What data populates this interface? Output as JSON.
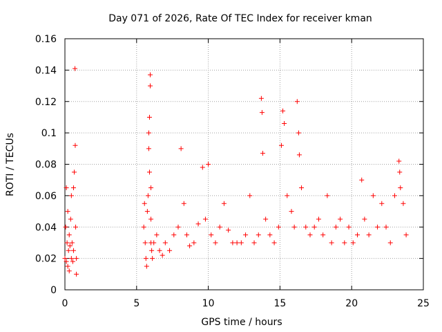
{
  "chart_data": {
    "type": "scatter",
    "title": "Day 071 of 2026, Rate Of TEC Index for receiver kman",
    "xlabel": "GPS time / hours",
    "ylabel": "ROTI / TECUs",
    "xlim": [
      0,
      25
    ],
    "ylim": [
      0,
      0.16
    ],
    "x_ticks": [
      0,
      5,
      10,
      15,
      20,
      25
    ],
    "x_tick_labels": [
      "0",
      "5",
      "10",
      "15",
      "20",
      "25"
    ],
    "y_ticks": [
      0,
      0.02,
      0.04,
      0.06,
      0.08,
      0.1,
      0.12,
      0.14,
      0.16
    ],
    "y_tick_labels": [
      "0",
      "0.02",
      "0.04",
      "0.06",
      "0.08",
      "0.1",
      "0.12",
      "0.14",
      "0.16"
    ],
    "grid": true,
    "legend": "none",
    "marker": "+",
    "color": "#ff0000",
    "series": [
      {
        "x": [
          0.0,
          0.05,
          0.1,
          0.1,
          0.15,
          0.2,
          0.2,
          0.25,
          0.3,
          0.3,
          0.35,
          0.4,
          0.45,
          0.45,
          0.5,
          0.55,
          0.6,
          0.6,
          0.65,
          0.7,
          0.72,
          0.75,
          0.8,
          0.8,
          5.5,
          5.55,
          5.6,
          5.65,
          5.7,
          5.75,
          5.8,
          5.85,
          5.85,
          5.9,
          5.9,
          5.95,
          5.95,
          6.0,
          6.0,
          6.0,
          6.05,
          6.1,
          6.2,
          6.4,
          6.6,
          6.8,
          7.0,
          7.3,
          7.6,
          7.9,
          8.1,
          8.3,
          8.5,
          8.7,
          9.0,
          9.3,
          9.6,
          9.8,
          10.0,
          10.2,
          10.5,
          10.8,
          11.1,
          11.4,
          11.7,
          12.0,
          12.3,
          12.6,
          12.9,
          13.2,
          13.5,
          13.7,
          13.75,
          13.8,
          14.0,
          14.3,
          14.6,
          14.9,
          15.1,
          15.2,
          15.3,
          15.5,
          15.8,
          16.0,
          16.2,
          16.3,
          16.35,
          16.5,
          16.8,
          17.1,
          17.4,
          17.7,
          18.0,
          18.3,
          18.6,
          18.9,
          19.2,
          19.5,
          19.8,
          20.1,
          20.4,
          20.7,
          20.9,
          21.2,
          21.5,
          21.8,
          22.1,
          22.4,
          22.7,
          23.0,
          23.3,
          23.35,
          23.4,
          23.6,
          23.8
        ],
        "y": [
          0.02,
          0.04,
          0.065,
          0.018,
          0.03,
          0.05,
          0.015,
          0.025,
          0.035,
          0.012,
          0.028,
          0.045,
          0.02,
          0.06,
          0.03,
          0.018,
          0.065,
          0.025,
          0.075,
          0.141,
          0.092,
          0.04,
          0.02,
          0.01,
          0.04,
          0.055,
          0.03,
          0.02,
          0.015,
          0.05,
          0.06,
          0.09,
          0.1,
          0.11,
          0.075,
          0.13,
          0.137,
          0.065,
          0.045,
          0.03,
          0.025,
          0.02,
          0.03,
          0.035,
          0.025,
          0.022,
          0.03,
          0.025,
          0.035,
          0.04,
          0.09,
          0.055,
          0.035,
          0.028,
          0.03,
          0.042,
          0.078,
          0.045,
          0.08,
          0.035,
          0.03,
          0.04,
          0.055,
          0.038,
          0.03,
          0.03,
          0.03,
          0.035,
          0.06,
          0.03,
          0.035,
          0.122,
          0.113,
          0.087,
          0.045,
          0.035,
          0.03,
          0.04,
          0.092,
          0.114,
          0.106,
          0.06,
          0.05,
          0.04,
          0.12,
          0.1,
          0.086,
          0.065,
          0.04,
          0.035,
          0.04,
          0.045,
          0.035,
          0.06,
          0.03,
          0.04,
          0.045,
          0.03,
          0.04,
          0.03,
          0.035,
          0.07,
          0.045,
          0.035,
          0.06,
          0.04,
          0.055,
          0.04,
          0.03,
          0.06,
          0.082,
          0.075,
          0.065,
          0.055,
          0.035
        ]
      }
    ]
  }
}
